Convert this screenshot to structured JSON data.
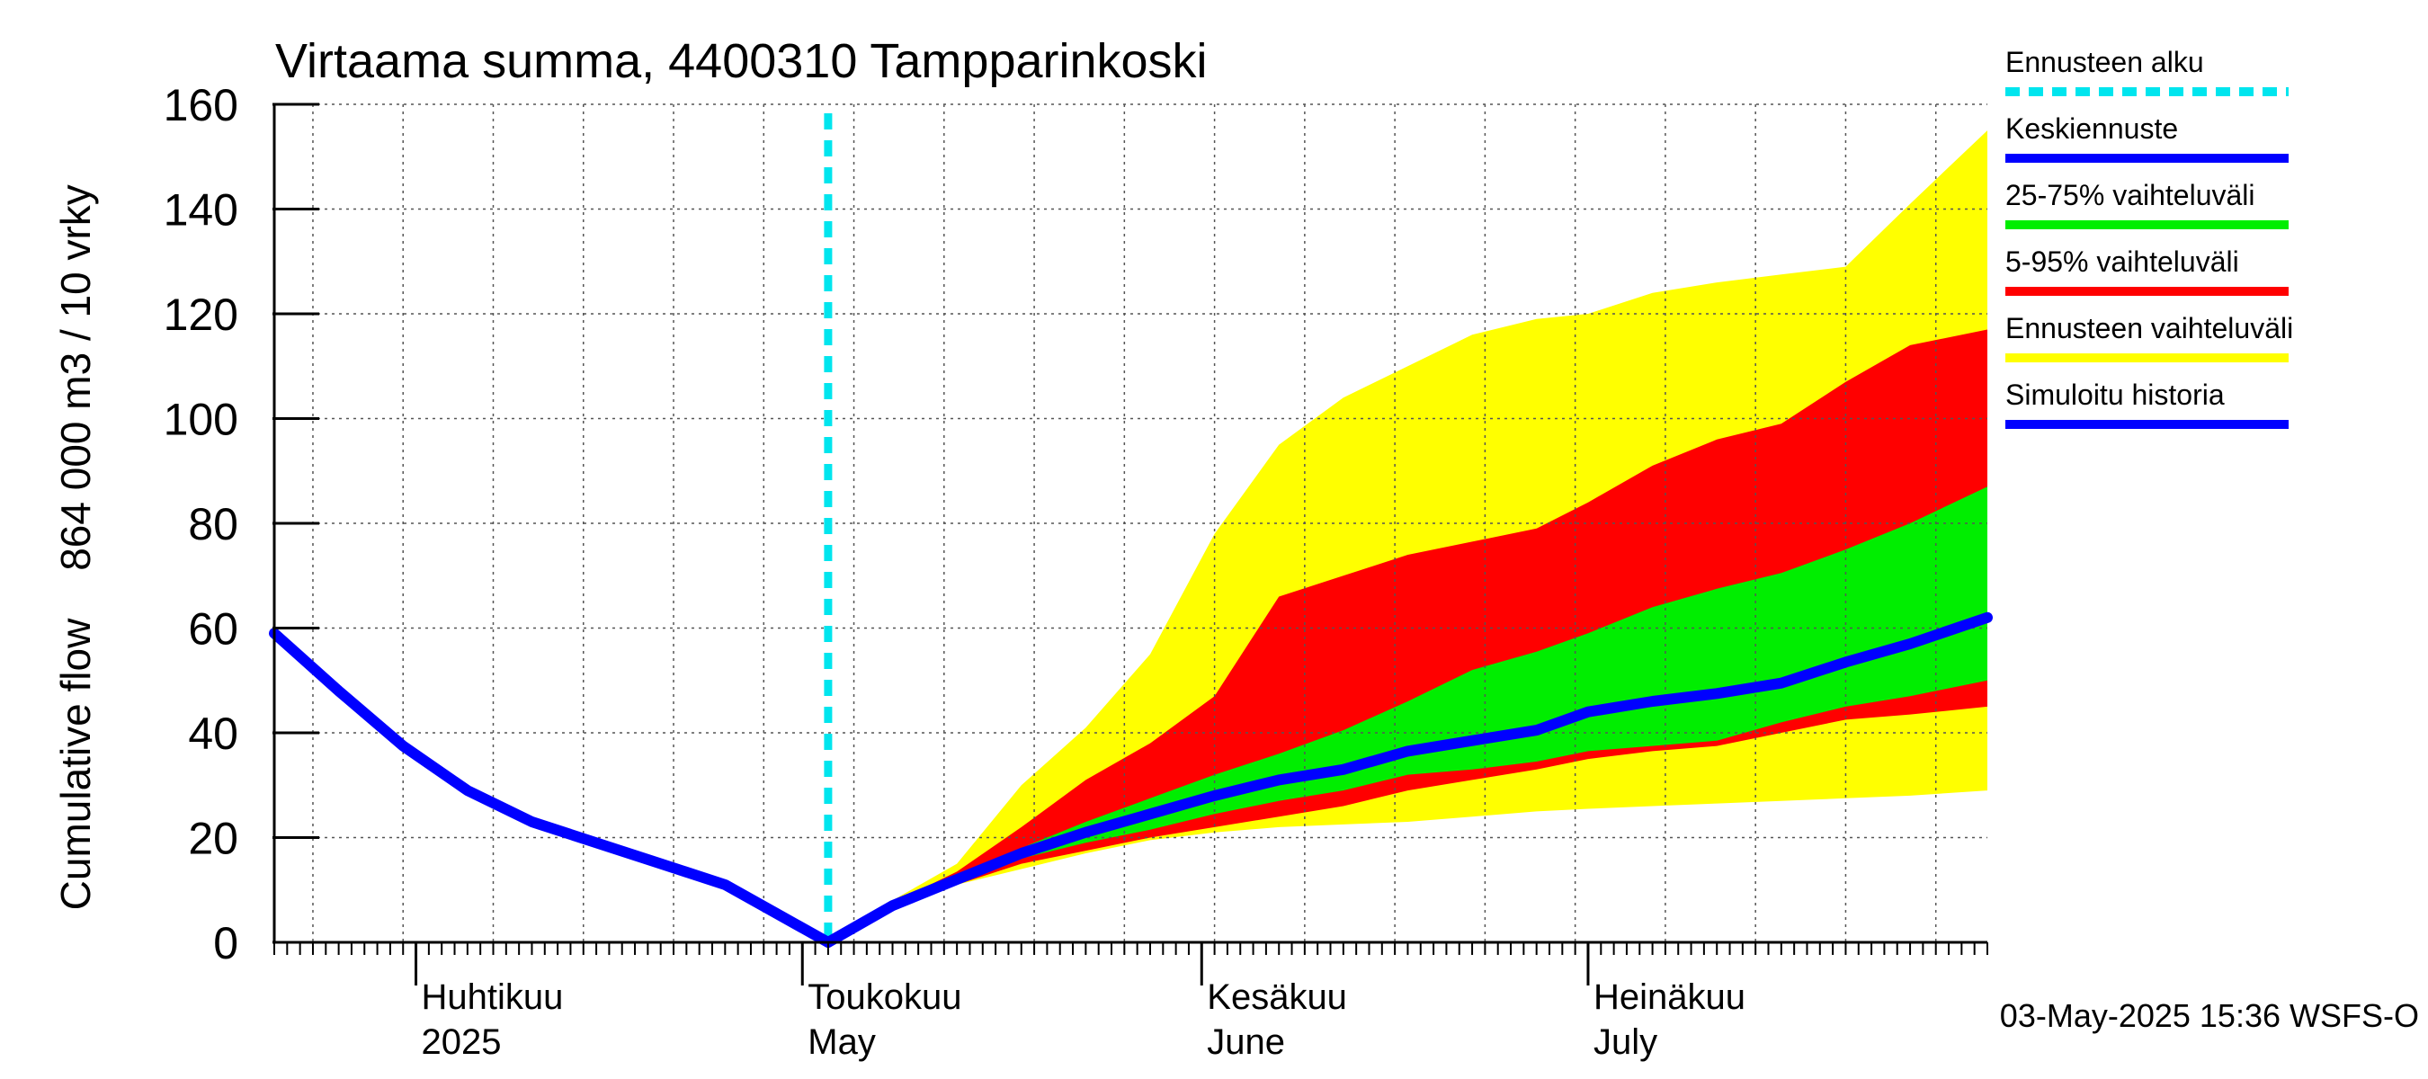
{
  "chart_data": {
    "type": "area",
    "title": "Virtaama summa, 4400310 Tampparinkoski",
    "ylabel_outer": "Cumulative flow",
    "ylabel_inner": "864 000 m3 / 10 vrky",
    "ylim": [
      0,
      160
    ],
    "yticks": [
      0,
      20,
      40,
      60,
      80,
      100,
      120,
      140,
      160
    ],
    "xlim": [
      "2025-03-21",
      "2025-08-01"
    ],
    "month_labels": [
      {
        "date": "2025-04-01",
        "fi": "Huhtikuu",
        "en": "2025"
      },
      {
        "date": "2025-05-01",
        "fi": "Toukokuu",
        "en": "May"
      },
      {
        "date": "2025-06-01",
        "fi": "Kesäkuu",
        "en": "June"
      },
      {
        "date": "2025-07-01",
        "fi": "Heinäkuu",
        "en": "July"
      }
    ],
    "forecast_start": "2025-05-03",
    "grid": true,
    "legend_position": "right",
    "footer": "03-May-2025 15:36 WSFS-O",
    "colors": {
      "forecast_start": "#00e5ee",
      "mean": "#0000ff",
      "band_25_75": "#00ee00",
      "band_5_95": "#ff0000",
      "band_full": "#ffff00",
      "history": "#0000ff"
    },
    "legend": [
      {
        "key": "forecast_start",
        "label": "Ennusteen alku",
        "style": "dashed"
      },
      {
        "key": "mean",
        "label": "Keskiennuste",
        "style": "solid"
      },
      {
        "key": "band_25_75",
        "label": "25-75% vaihteluväli",
        "style": "solid"
      },
      {
        "key": "band_5_95",
        "label": "5-95% vaihteluväli",
        "style": "solid"
      },
      {
        "key": "band_full",
        "label": "Ennusteen vaihteluväli",
        "style": "solid"
      },
      {
        "key": "history",
        "label": "Simuloitu historia",
        "style": "solid"
      }
    ],
    "series": {
      "history": {
        "x": [
          "2025-03-21",
          "2025-03-26",
          "2025-03-31",
          "2025-04-05",
          "2025-04-10",
          "2025-04-15",
          "2025-04-20",
          "2025-04-25",
          "2025-05-03"
        ],
        "y": [
          59,
          48,
          37.5,
          29,
          23,
          19,
          15,
          11,
          0
        ]
      },
      "mean": {
        "x": [
          "2025-05-03",
          "2025-05-08",
          "2025-05-13",
          "2025-05-18",
          "2025-05-23",
          "2025-05-28",
          "2025-06-02",
          "2025-06-07",
          "2025-06-12",
          "2025-06-17",
          "2025-06-22",
          "2025-06-27",
          "2025-07-01",
          "2025-07-06",
          "2025-07-11",
          "2025-07-16",
          "2025-07-21",
          "2025-07-26",
          "2025-08-01"
        ],
        "y": [
          0,
          7,
          12,
          17,
          21,
          24.5,
          28,
          31,
          33,
          36.5,
          38.5,
          40.5,
          44,
          46,
          47.5,
          49.5,
          53.5,
          57,
          62
        ]
      },
      "band_full": {
        "x": [
          "2025-05-03",
          "2025-05-08",
          "2025-05-13",
          "2025-05-18",
          "2025-05-23",
          "2025-05-28",
          "2025-06-02",
          "2025-06-07",
          "2025-06-12",
          "2025-06-17",
          "2025-06-22",
          "2025-06-27",
          "2025-07-01",
          "2025-07-06",
          "2025-07-11",
          "2025-07-16",
          "2025-07-21",
          "2025-07-26",
          "2025-08-01"
        ],
        "low": [
          0,
          7,
          11,
          14,
          17,
          19.5,
          21,
          22,
          22.5,
          23,
          24,
          25,
          25.5,
          26,
          26.5,
          27,
          27.5,
          28,
          29
        ],
        "high": [
          0,
          8,
          15,
          30,
          41,
          55,
          78,
          95,
          104,
          110,
          116,
          119,
          120,
          124,
          126,
          127.5,
          129,
          141,
          155
        ]
      },
      "band_5_95": {
        "x": [
          "2025-05-03",
          "2025-05-08",
          "2025-05-13",
          "2025-05-18",
          "2025-05-23",
          "2025-05-28",
          "2025-06-02",
          "2025-06-07",
          "2025-06-12",
          "2025-06-17",
          "2025-06-22",
          "2025-06-27",
          "2025-07-01",
          "2025-07-06",
          "2025-07-11",
          "2025-07-16",
          "2025-07-21",
          "2025-07-26",
          "2025-08-01"
        ],
        "low": [
          0,
          7,
          11,
          15,
          17.5,
          20,
          22,
          24,
          26,
          29,
          31,
          33,
          35,
          36.5,
          37.5,
          40,
          42.5,
          43.5,
          45
        ],
        "high": [
          0,
          7.5,
          13.5,
          22,
          31,
          38,
          47,
          66,
          70,
          74,
          76.5,
          79,
          84,
          91,
          96,
          99,
          107,
          114,
          117
        ]
      },
      "band_25_75": {
        "x": [
          "2025-05-03",
          "2025-05-08",
          "2025-05-13",
          "2025-05-18",
          "2025-05-23",
          "2025-05-28",
          "2025-06-02",
          "2025-06-07",
          "2025-06-12",
          "2025-06-17",
          "2025-06-22",
          "2025-06-27",
          "2025-07-01",
          "2025-07-06",
          "2025-07-11",
          "2025-07-16",
          "2025-07-21",
          "2025-07-26",
          "2025-08-01"
        ],
        "low": [
          0,
          7,
          12,
          16,
          19,
          21.5,
          24.5,
          27,
          29,
          32,
          33,
          34.5,
          36.5,
          37.5,
          38.5,
          42,
          45,
          47,
          50
        ],
        "high": [
          0,
          7.5,
          12.5,
          18,
          23,
          27.5,
          32,
          36,
          40.5,
          46,
          52,
          55.5,
          59,
          64,
          67.5,
          70.5,
          75,
          80,
          87
        ]
      }
    }
  }
}
